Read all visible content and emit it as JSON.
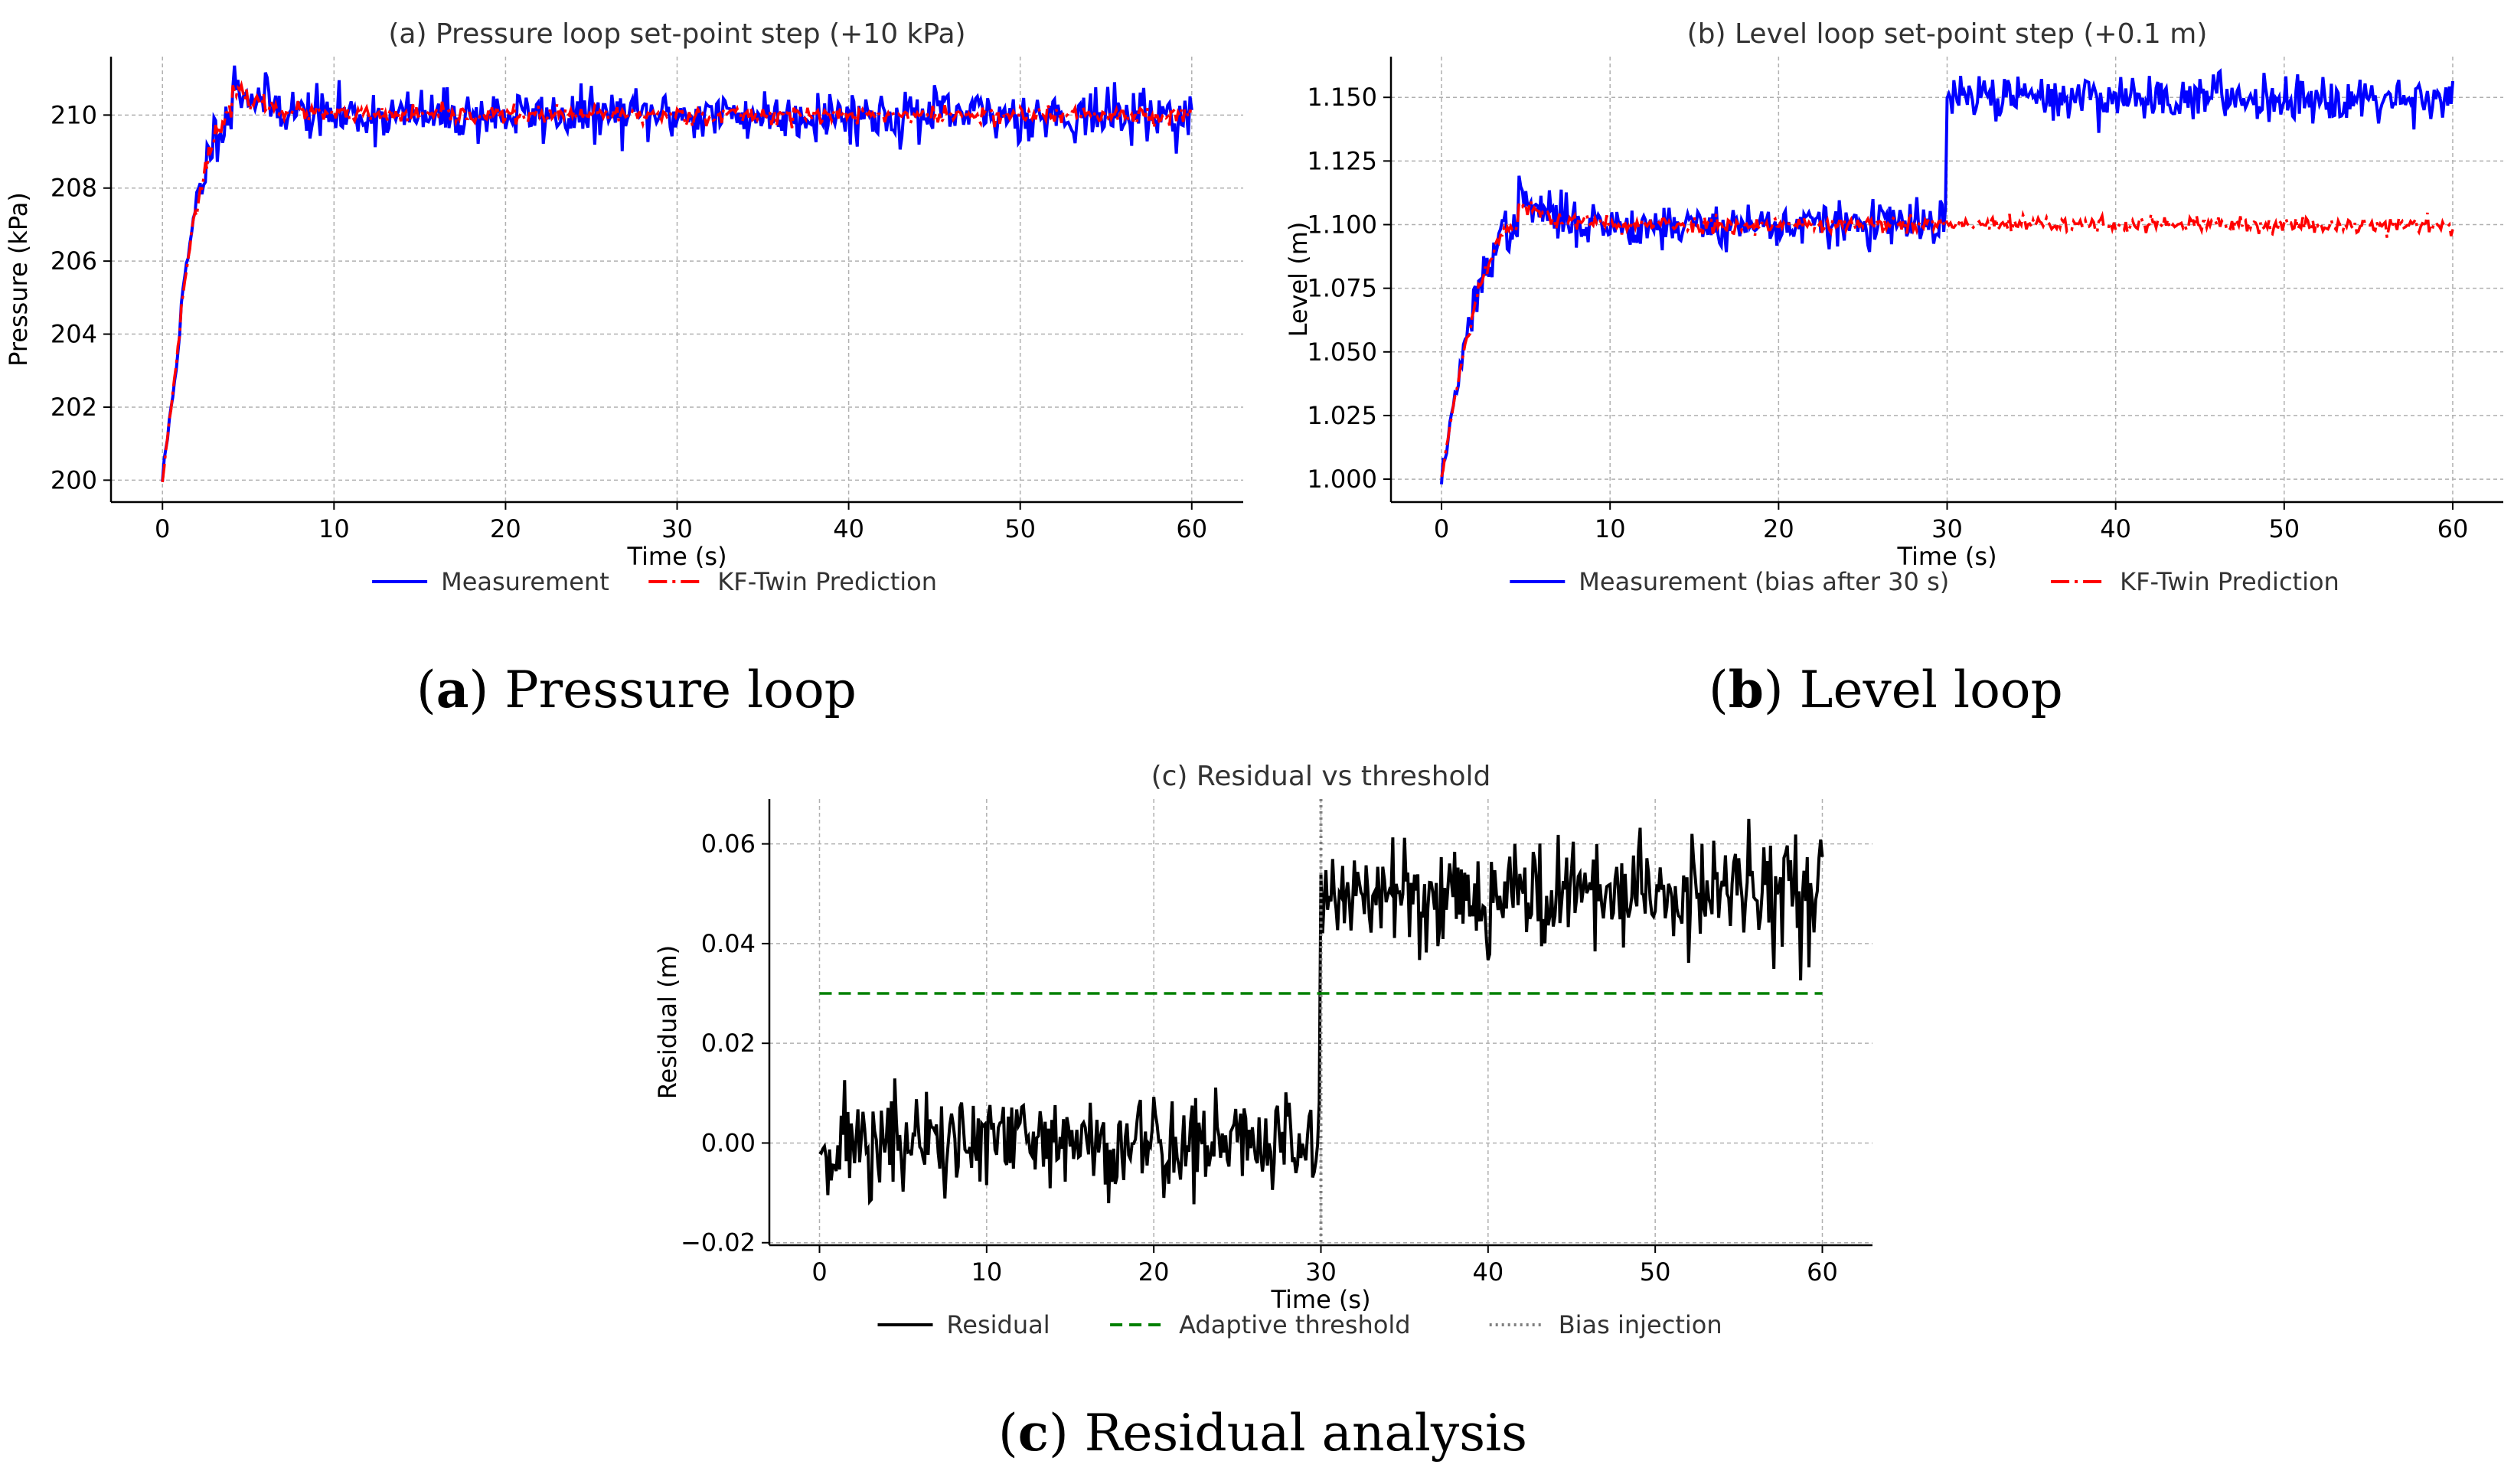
{
  "chart_data": [
    {
      "id": "a",
      "type": "line",
      "title": "(a) Pressure loop set-point step (+10 kPa)",
      "xlabel": "Time (s)",
      "ylabel": "Pressure (kPa)",
      "xlim": [
        -3,
        63
      ],
      "ylim": [
        199.4,
        211.6
      ],
      "xticks": [
        0,
        10,
        20,
        30,
        40,
        50,
        60
      ],
      "yticks": [
        200,
        202,
        204,
        206,
        208,
        210
      ],
      "xtick_labels": [
        "0",
        "10",
        "20",
        "30",
        "40",
        "50",
        "60"
      ],
      "ytick_labels": [
        "200",
        "202",
        "204",
        "206",
        "208",
        "210"
      ],
      "grid": true,
      "legend_position": "bottom-center",
      "series": [
        {
          "name": "Measurement",
          "color": "#0000ff",
          "style": "solid",
          "model": {
            "start": 200,
            "target": 210,
            "rise_time": 4,
            "overshoot": 0.9,
            "noise": 0.35,
            "seed": 11
          }
        },
        {
          "name": "KF-Twin Prediction",
          "color": "#ff0000",
          "style": "dashdot",
          "model": {
            "start": 200,
            "target": 210,
            "rise_time": 4,
            "overshoot": 0.7,
            "noise": 0.12,
            "seed": 23
          }
        }
      ]
    },
    {
      "id": "b",
      "type": "line",
      "title": "(b) Level loop set-point step (+0.1 m)",
      "xlabel": "Time (s)",
      "ylabel": "Level (m)",
      "xlim": [
        -3,
        63
      ],
      "ylim": [
        0.991,
        1.166
      ],
      "xticks": [
        0,
        10,
        20,
        30,
        40,
        50,
        60
      ],
      "yticks": [
        1.0,
        1.025,
        1.05,
        1.075,
        1.1,
        1.125,
        1.15
      ],
      "xtick_labels": [
        "0",
        "10",
        "20",
        "30",
        "40",
        "50",
        "60"
      ],
      "ytick_labels": [
        "1.000",
        "1.025",
        "1.050",
        "1.075",
        "1.100",
        "1.125",
        "1.150"
      ],
      "grid": true,
      "legend_position": "bottom-center",
      "series": [
        {
          "name": "Measurement (bias after 30 s)",
          "color": "#0000ff",
          "style": "solid",
          "model": {
            "start": 1.0,
            "target": 1.1,
            "rise_time": 4.5,
            "overshoot": 0.01,
            "noise": 0.0045,
            "bias": 0.05,
            "bias_time": 30,
            "seed": 37
          }
        },
        {
          "name": "KF-Twin Prediction",
          "color": "#ff0000",
          "style": "dashdot",
          "model": {
            "start": 1.0,
            "target": 1.1,
            "rise_time": 4.5,
            "overshoot": 0.008,
            "noise": 0.0017,
            "seed": 53
          }
        }
      ]
    },
    {
      "id": "c",
      "type": "line",
      "title": "(c) Residual vs threshold",
      "xlabel": "Time (s)",
      "ylabel": "Residual (m)",
      "xlim": [
        -3,
        63
      ],
      "ylim": [
        -0.0205,
        0.069
      ],
      "xticks": [
        0,
        10,
        20,
        30,
        40,
        50,
        60
      ],
      "yticks": [
        -0.02,
        0.0,
        0.02,
        0.04,
        0.06
      ],
      "xtick_labels": [
        "0",
        "10",
        "20",
        "30",
        "40",
        "50",
        "60"
      ],
      "ytick_labels": [
        "−0.02",
        "0.00",
        "0.02",
        "0.04",
        "0.06"
      ],
      "grid": true,
      "legend_position": "bottom-center",
      "series": [
        {
          "name": "Residual",
          "color": "#000000",
          "style": "solid",
          "model": {
            "base": 0.0,
            "noise": 0.0055,
            "bias": 0.05,
            "bias_time": 30,
            "seed": 71
          }
        },
        {
          "name": "Adaptive threshold",
          "color": "#008000",
          "style": "dashed",
          "points": [
            [
              0,
              0.03
            ],
            [
              60,
              0.03
            ]
          ]
        },
        {
          "name": "Bias injection",
          "color": "#808080",
          "style": "dotted",
          "vline_x": 30
        }
      ]
    }
  ],
  "captions": {
    "a": {
      "label": "a",
      "text": " Pressure loop"
    },
    "b": {
      "label": "b",
      "text": " Level loop"
    },
    "c": {
      "label": "c",
      "text": " Residual analysis"
    }
  }
}
